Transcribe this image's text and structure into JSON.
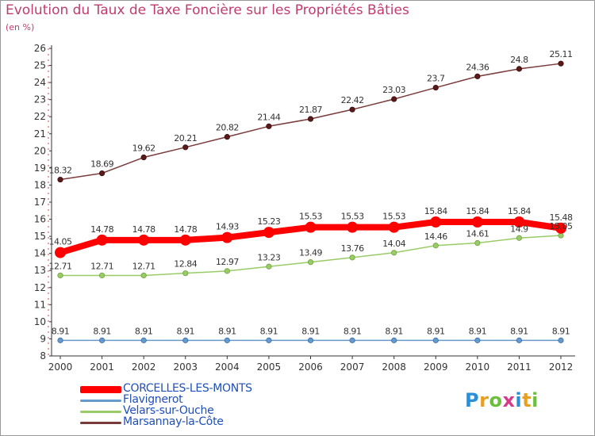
{
  "chart_data": {
    "type": "line",
    "title": "Evolution du Taux de Taxe Foncière sur les Propriétés Bâties",
    "ylabel": "(en %)",
    "xlabel": "",
    "ylim": [
      8,
      26
    ],
    "yticks": [
      "8",
      "9",
      "10",
      "11",
      "12",
      "13",
      "14",
      "15",
      "16",
      "17",
      "18",
      "19",
      "20",
      "21",
      "22",
      "23",
      "24",
      "25",
      "26"
    ],
    "categories": [
      "2000",
      "2001",
      "2002",
      "2003",
      "2004",
      "2005",
      "2006",
      "2007",
      "2008",
      "2009",
      "2010",
      "2011",
      "2012"
    ],
    "series": [
      {
        "name": "CORCELLES-LES-MONTS",
        "color": "#ff0000",
        "values": [
          14.05,
          14.78,
          14.78,
          14.78,
          14.93,
          15.23,
          15.53,
          15.53,
          15.53,
          15.84,
          15.84,
          15.84,
          15.48
        ],
        "labels": [
          "14.05",
          "14.78",
          "14.78",
          "14.78",
          "14.93",
          "15.23",
          "15.53",
          "15.53",
          "15.53",
          "15.84",
          "15.84",
          "15.84",
          "15.48"
        ]
      },
      {
        "name": "Flavignerot",
        "color": "#6699cc",
        "values": [
          8.91,
          8.91,
          8.91,
          8.91,
          8.91,
          8.91,
          8.91,
          8.91,
          8.91,
          8.91,
          8.91,
          8.91,
          8.91
        ],
        "labels": [
          "8.91",
          "8.91",
          "8.91",
          "8.91",
          "8.91",
          "8.91",
          "8.91",
          "8.91",
          "8.91",
          "8.91",
          "8.91",
          "8.91",
          "8.91"
        ]
      },
      {
        "name": "Velars-sur-Ouche",
        "color": "#99cc66",
        "values": [
          12.71,
          12.71,
          12.71,
          12.84,
          12.97,
          13.23,
          13.49,
          13.76,
          14.04,
          14.46,
          14.61,
          14.9,
          15.05
        ],
        "labels": [
          "12.71",
          "12.71",
          "12.71",
          "12.84",
          "12.97",
          "13.23",
          "13.49",
          "13.76",
          "14.04",
          "14.46",
          "14.61",
          "14.9",
          "15.05"
        ]
      },
      {
        "name": "Marsannay-la-Côte",
        "color": "#7a3a3a",
        "values": [
          18.32,
          18.69,
          19.62,
          20.21,
          20.82,
          21.44,
          21.87,
          22.42,
          23.03,
          23.7,
          24.36,
          24.8,
          25.11
        ],
        "labels": [
          "18.32",
          "18.69",
          "19.62",
          "20.21",
          "20.82",
          "21.44",
          "21.87",
          "22.42",
          "23.03",
          "23.7",
          "24.36",
          "24.8",
          "25.11"
        ]
      }
    ],
    "grid": false,
    "legend_position": "bottom-left"
  },
  "logo": {
    "text": "Proxiti"
  }
}
